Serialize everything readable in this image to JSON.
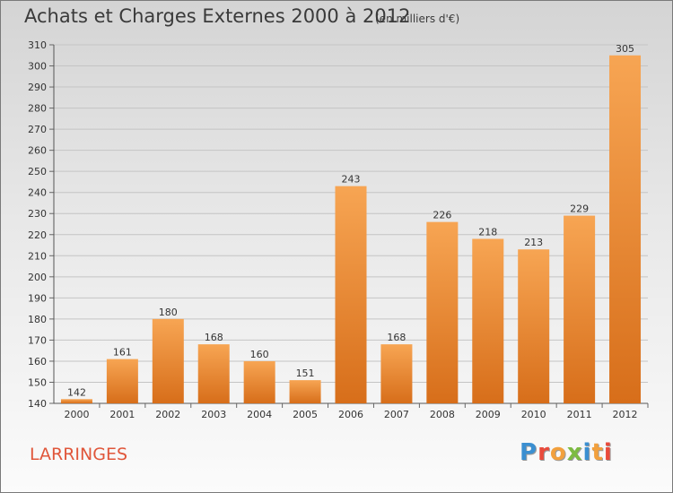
{
  "header": {
    "title": "Achats et Charges Externes 2000 à 2012",
    "unit": "(en milliers d'€)"
  },
  "footer": {
    "location": "LARRINGES",
    "logo_text": "Proxiti",
    "logo_colors": [
      "#3b8fd1",
      "#e94b3c",
      "#f2a03d",
      "#7dbb42",
      "#3b8fd1",
      "#f2a03d",
      "#e94b3c"
    ]
  },
  "chart_data": {
    "type": "bar",
    "title": "Achats et Charges Externes 2000 à 2012",
    "xlabel": "",
    "ylabel": "",
    "categories": [
      "2000",
      "2001",
      "2002",
      "2003",
      "2004",
      "2005",
      "2006",
      "2007",
      "2008",
      "2009",
      "2010",
      "2011",
      "2012"
    ],
    "values": [
      142,
      161,
      180,
      168,
      160,
      151,
      243,
      168,
      226,
      218,
      213,
      229,
      305
    ],
    "ylim": [
      140,
      310
    ],
    "yticks": [
      140,
      150,
      160,
      170,
      180,
      190,
      200,
      210,
      220,
      230,
      240,
      250,
      260,
      270,
      280,
      290,
      300,
      310
    ],
    "grid": true,
    "bar_color": "#f0913a"
  }
}
